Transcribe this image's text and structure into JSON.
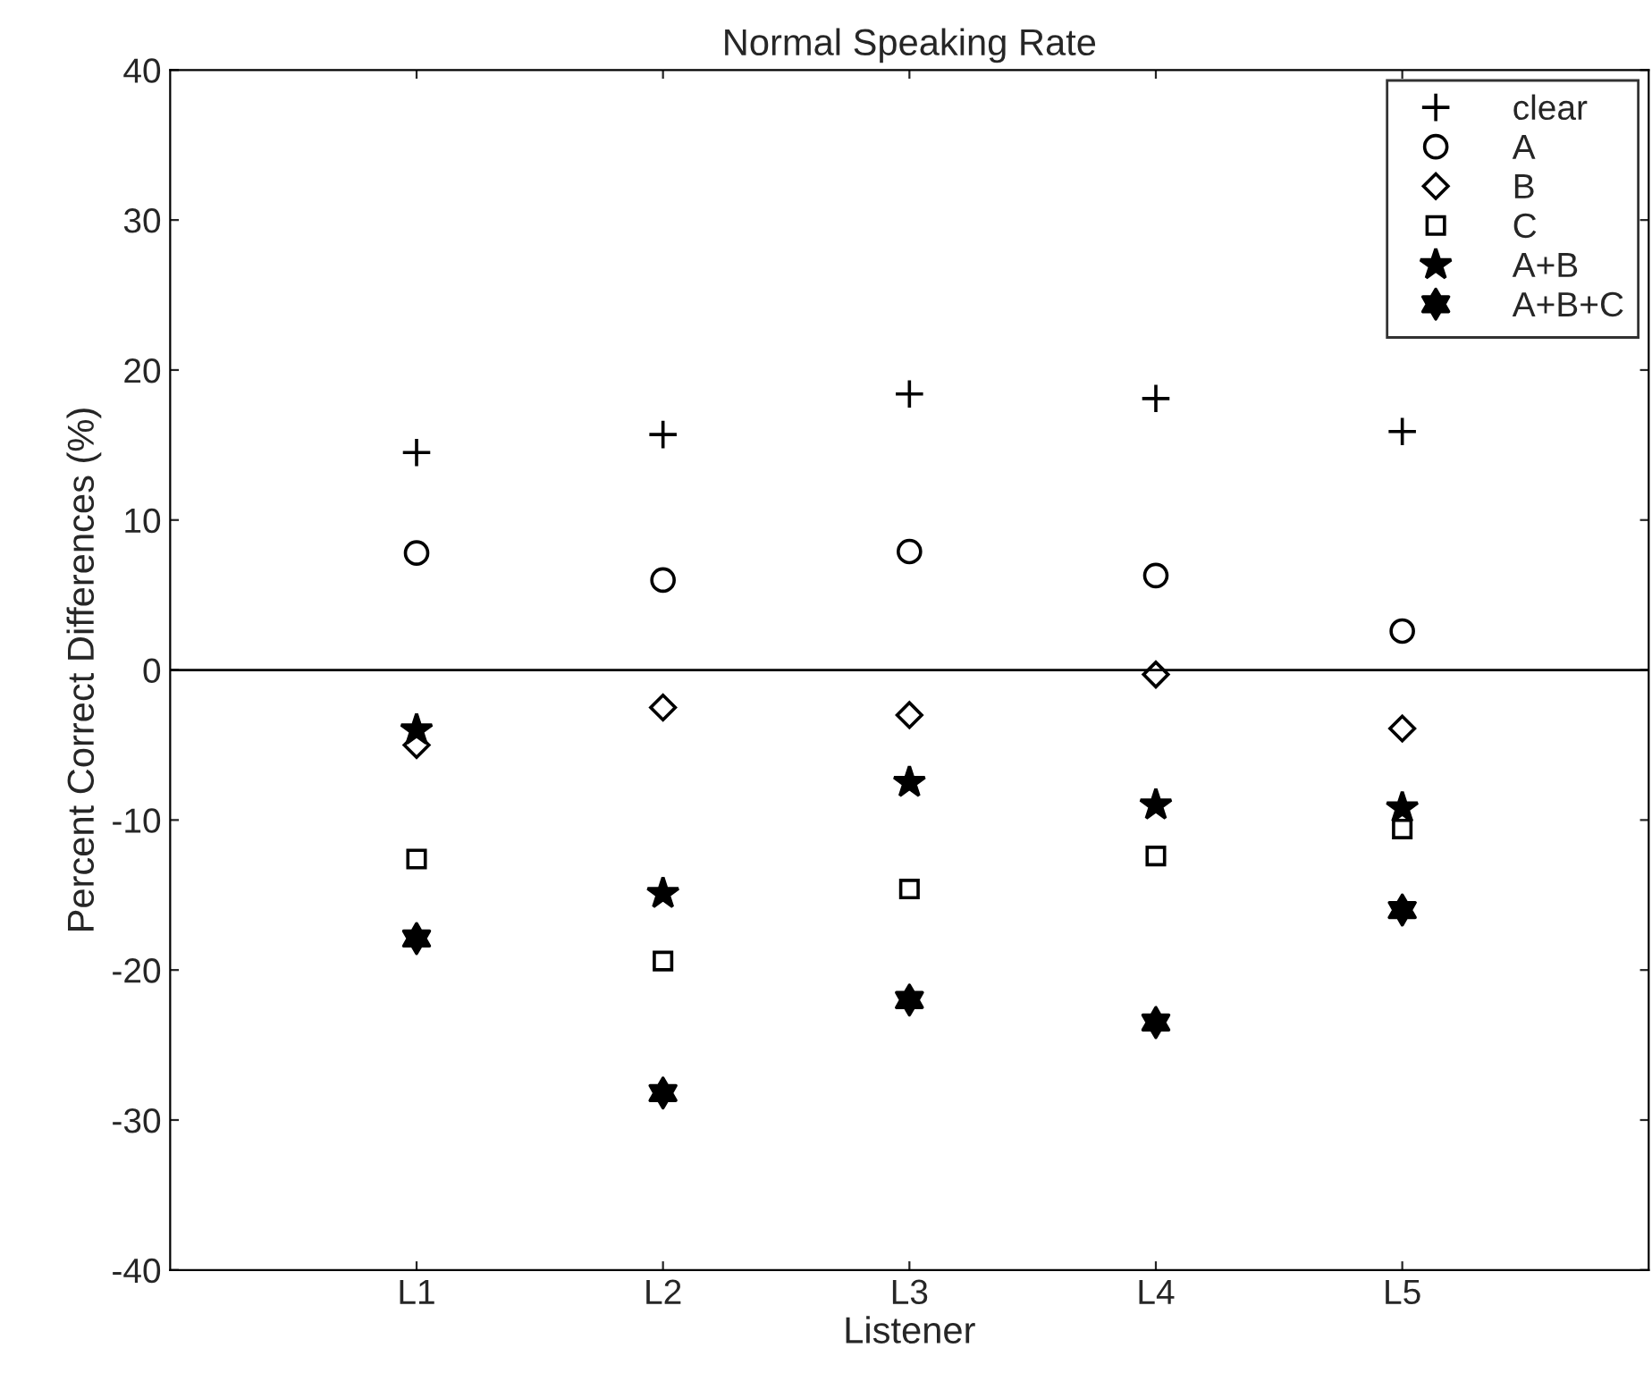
{
  "chart_data": {
    "type": "scatter",
    "title": "Normal Speaking Rate",
    "xlabel": "Listener",
    "ylabel": "Percent Correct Differences (%)",
    "categories": [
      "L1",
      "L2",
      "L3",
      "L4",
      "L5"
    ],
    "series": [
      {
        "name": "clear",
        "color": "#000000",
        "marker": "cross",
        "values": [
          14.5,
          15.7,
          18.4,
          18.1,
          15.9
        ]
      },
      {
        "name": "A",
        "color": "#000000",
        "marker": "circle",
        "values": [
          7.8,
          6.0,
          7.9,
          6.3,
          2.6
        ]
      },
      {
        "name": "B",
        "color": "#000000",
        "marker": "diamond",
        "values": [
          -5.0,
          -2.5,
          -3.0,
          -0.3,
          -3.9
        ]
      },
      {
        "name": "C",
        "color": "#000000",
        "marker": "square",
        "values": [
          -12.6,
          -19.4,
          -14.6,
          -12.4,
          -10.6
        ]
      },
      {
        "name": "A+B",
        "color": "#000000",
        "marker": "star",
        "values": [
          -4.0,
          -14.9,
          -7.5,
          -9.0,
          -9.2
        ]
      },
      {
        "name": "A+B+C",
        "color": "#000000",
        "values": [
          -17.9,
          -28.2,
          -22.0,
          -23.5,
          -16.0
        ]
      }
    ],
    "ylim": [
      -40,
      40
    ],
    "yticks": [
      -40,
      -30,
      -20,
      -10,
      0,
      10,
      20,
      30,
      40
    ],
    "ref_lines": [
      {
        "axis": "y",
        "value": 0,
        "color": "#000000"
      }
    ],
    "grid": false,
    "legend": "top right"
  }
}
